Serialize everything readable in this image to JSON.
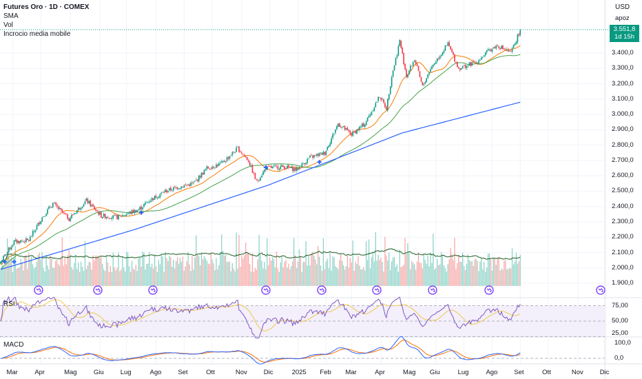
{
  "header": {
    "title": "Futures Oro · 1D · COMEX",
    "indicators": [
      "SMA",
      "Vol",
      "Incrocio media mobile"
    ],
    "currency": "USD",
    "user": "apoz"
  },
  "price_tag": {
    "price": "3.551,8",
    "countdown": "1d 15h"
  },
  "colors": {
    "up": "#089981",
    "down": "#f23645",
    "sma_fast": "#f57c00",
    "sma_mid": "#43a047",
    "sma_slow": "#2962ff",
    "vol_ma": "#1b5e20",
    "rsi": "#7e57c2",
    "rsi_ma": "#f2c94c",
    "macd": "#2962ff",
    "signal": "#ff6d00"
  },
  "panels": {
    "rsi_label": "RSI",
    "macd_label": "MACD"
  },
  "chart_data": {
    "type": "candlestick",
    "title": "Futures Oro · 1D · COMEX",
    "ylabel": "USD",
    "ylim": [
      1850,
      3600
    ],
    "price_ticks": [
      "3.400,0",
      "3.300,0",
      "3.200,0",
      "3.100,0",
      "3.000,0",
      "2.900,0",
      "2.800,0",
      "2.700,0",
      "2.600,0",
      "2.500,0",
      "2.400,0",
      "2.300,0",
      "2.200,0",
      "2.100,0",
      "2.000,0",
      "1.900,0"
    ],
    "price_tick_values": [
      3400,
      3300,
      3200,
      3100,
      3000,
      2900,
      2800,
      2700,
      2600,
      2500,
      2400,
      2300,
      2200,
      2100,
      2000,
      1900
    ],
    "x_ticks": [
      "Mar",
      "Apr",
      "Mag",
      "Giu",
      "Lug",
      "Ago",
      "Set",
      "Ott",
      "Nov",
      "Dic",
      "2025",
      "Feb",
      "Mar",
      "Apr",
      "Mag",
      "Giu",
      "Lug",
      "Ago",
      "Set",
      "Ott",
      "Nov",
      "Dic"
    ],
    "x_tick_days": [
      9,
      30,
      52,
      74,
      94,
      116,
      137,
      158,
      180,
      201,
      222,
      243,
      262,
      284,
      305,
      325,
      346,
      367,
      388,
      409,
      431,
      452
    ],
    "close_path": {
      "day": [
        0,
        10,
        21,
        31,
        39,
        51,
        64,
        75,
        87,
        103,
        111,
        123,
        134,
        144,
        154,
        165,
        177,
        185,
        191,
        198,
        211,
        221,
        231,
        242,
        252,
        262,
        272,
        283,
        288,
        292,
        296,
        298,
        303,
        309,
        315,
        321,
        334,
        342,
        355,
        365,
        371,
        381,
        388
      ],
      "close": [
        2040,
        2170,
        2180,
        2330,
        2420,
        2320,
        2440,
        2340,
        2330,
        2380,
        2440,
        2500,
        2530,
        2550,
        2650,
        2680,
        2780,
        2700,
        2560,
        2650,
        2660,
        2640,
        2720,
        2750,
        2940,
        2870,
        2940,
        3120,
        3040,
        3250,
        3400,
        3480,
        3250,
        3360,
        3180,
        3300,
        3460,
        3300,
        3340,
        3420,
        3450,
        3400,
        3550
      ]
    },
    "sma200_path": {
      "day": [
        0,
        100,
        200,
        300,
        388
      ],
      "value": [
        1990,
        2250,
        2540,
        2880,
        3080
      ]
    },
    "rsi_ticks": [
      "75,00",
      "50,00",
      "25,00"
    ],
    "rsi_tick_values": [
      75,
      50,
      25
    ],
    "macd_ticks": [
      "100,0",
      "0,0"
    ],
    "macd_tick_values": [
      100,
      0
    ],
    "last_price": 3551.8
  }
}
